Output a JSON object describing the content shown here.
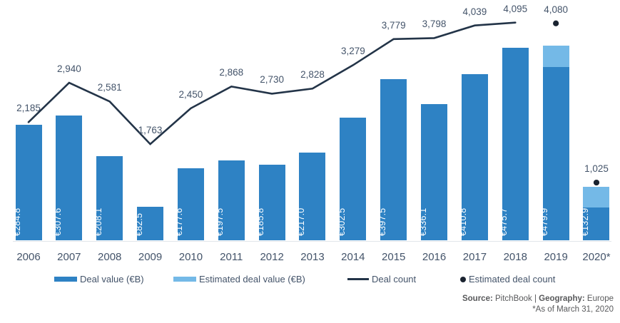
{
  "chart_data": {
    "type": "bar",
    "subtype": "combo-bar-line",
    "title": "",
    "categories": [
      "2006",
      "2007",
      "2008",
      "2009",
      "2010",
      "2011",
      "2012",
      "2013",
      "2014",
      "2015",
      "2016",
      "2017",
      "2018",
      "2019",
      "2020*"
    ],
    "series": [
      {
        "name": "Deal value (€B)",
        "type": "bar",
        "values": [
          284.8,
          307.6,
          208.1,
          82.5,
          177.6,
          197.5,
          185.8,
          217.0,
          302.5,
          397.5,
          336.1,
          410.8,
          475.7,
          479.9,
          132.9
        ],
        "labels": [
          "€284.8",
          "€307.6",
          "€208.1",
          "€82.5",
          "€177.6",
          "€197.5",
          "€185.8",
          "€217.0",
          "€302.5",
          "€397.5",
          "€336.1",
          "€410.8",
          "€475.7",
          "€479.9",
          "€132.9"
        ]
      },
      {
        "name": "Estimated deal value (€B)",
        "type": "bar-cap",
        "note": "unlabeled light-blue caps, estimated from pixels",
        "values": [
          0,
          0,
          0,
          0,
          0,
          0,
          0,
          0,
          0,
          0,
          0,
          0,
          0,
          52,
          52
        ]
      },
      {
        "name": "Deal count",
        "type": "line",
        "values": [
          2185,
          2940,
          2581,
          1763,
          2450,
          2868,
          2730,
          2828,
          3279,
          3779,
          3798,
          4039,
          4095
        ],
        "labels": [
          "2,185",
          "2,940",
          "2,581",
          "1,763",
          "2,450",
          "2,868",
          "2,730",
          "2,828",
          "3,279",
          "3,779",
          "3,798",
          "4,039",
          "4,095"
        ]
      },
      {
        "name": "Estimated deal count",
        "type": "scatter",
        "points": [
          {
            "category": "2019",
            "index": 13,
            "value": 4080,
            "label": "4,080"
          },
          {
            "category": "2020*",
            "index": 14,
            "value": 1025,
            "label": "1,025"
          }
        ]
      }
    ],
    "xlabel": "",
    "ylabel": "",
    "axes_visible": false,
    "grid": false,
    "legend_position": "bottom"
  },
  "colors": {
    "bar_dark": "#2e82c4",
    "bar_light": "#74b9e7",
    "line": "#233448",
    "dot": "#1a2330",
    "label_text": "#44546a",
    "footer_text": "#58595b"
  },
  "legend": {
    "items": [
      {
        "label": "Deal value (€B)",
        "swatch": "bar-dark"
      },
      {
        "label": "Estimated deal value (€B)",
        "swatch": "bar-light"
      },
      {
        "label": "Deal count",
        "swatch": "line"
      },
      {
        "label": "Estimated deal count",
        "swatch": "dot"
      }
    ]
  },
  "footer": {
    "source_label": "Source:",
    "source_value": " PitchBook | ",
    "geo_label": "Geography:",
    "geo_value": " Europe",
    "note": "*As of March 31, 2020"
  }
}
